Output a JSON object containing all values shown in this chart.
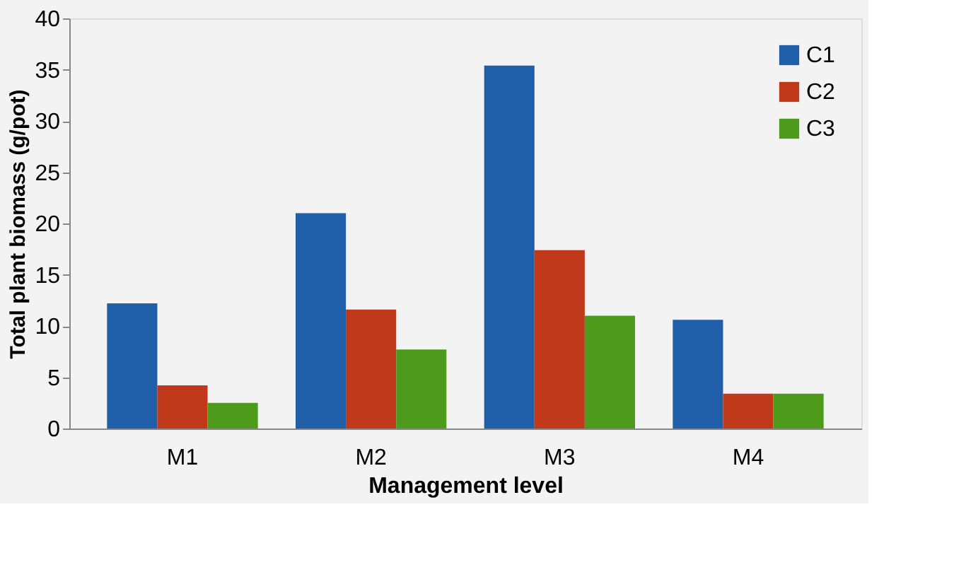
{
  "chart_data": {
    "type": "bar",
    "xlabel": "Management level",
    "ylabel": "Total plant biomass (g/pot)",
    "categories": [
      "M1",
      "M2",
      "M3",
      "M4"
    ],
    "series": [
      {
        "name": "C1",
        "color": "#1f5faa",
        "values": [
          12.2,
          21.0,
          35.4,
          10.6
        ]
      },
      {
        "name": "C2",
        "color": "#c0391b",
        "values": [
          4.2,
          11.6,
          17.4,
          3.4
        ]
      },
      {
        "name": "C3",
        "color": "#4e9a1c",
        "values": [
          2.5,
          7.7,
          11.0,
          3.4
        ]
      }
    ],
    "ylim": [
      0,
      40
    ],
    "yticks": [
      0,
      5,
      10,
      15,
      20,
      25,
      30,
      35,
      40
    ],
    "grid": false,
    "legend": "top right"
  }
}
